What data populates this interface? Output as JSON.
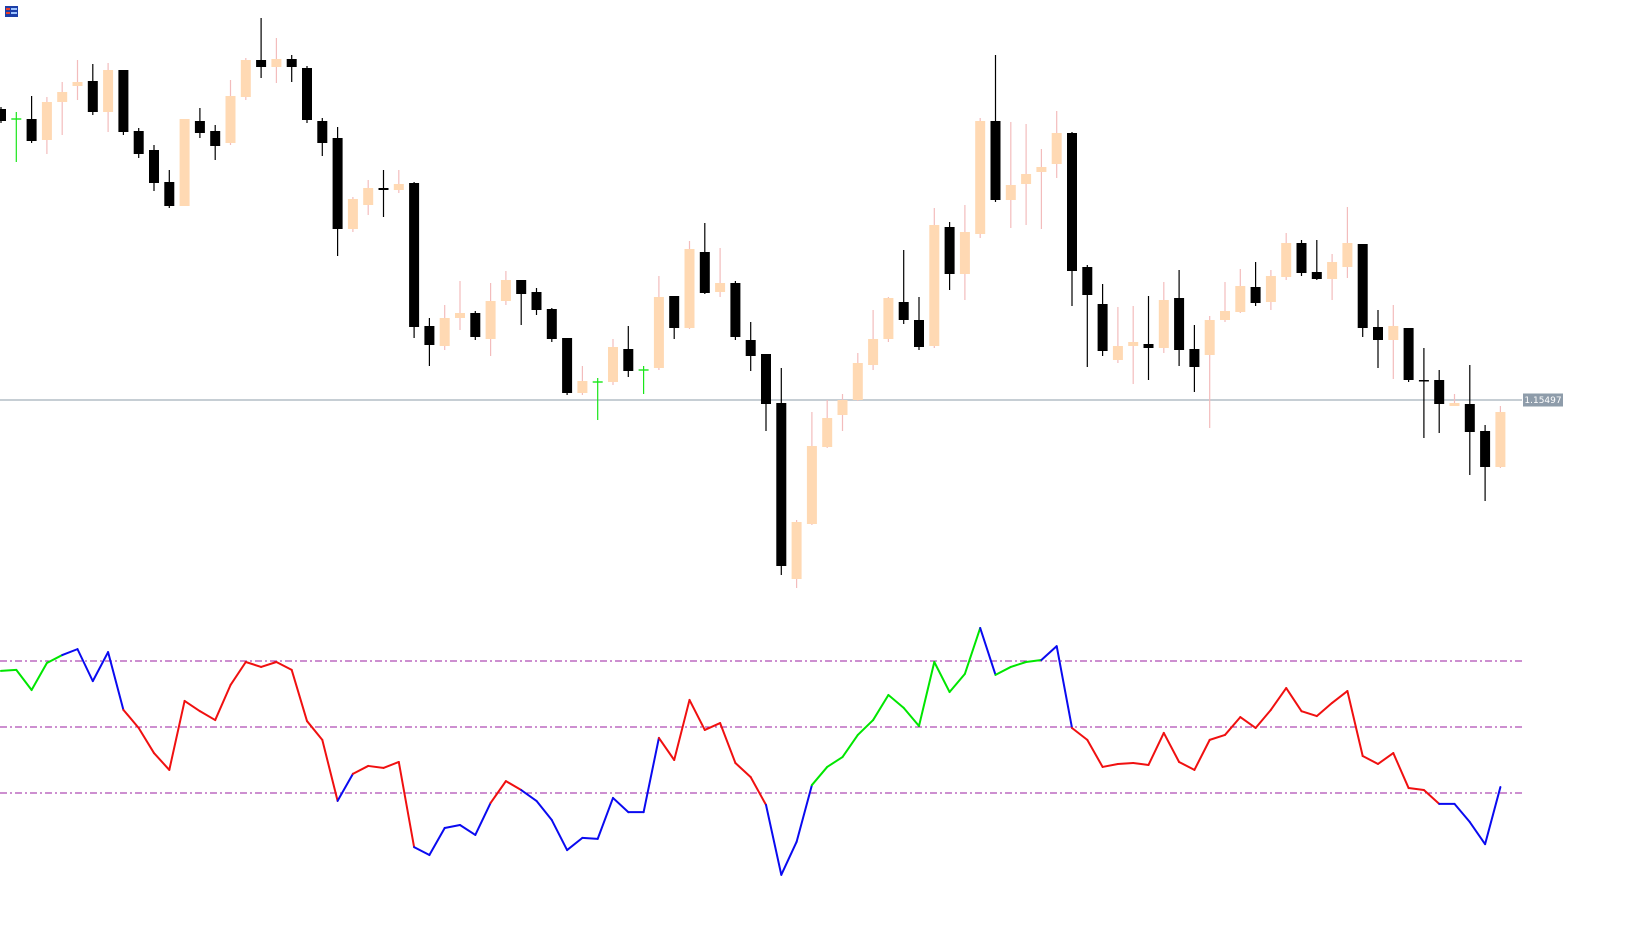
{
  "chart_data": [
    {
      "type": "candlestick",
      "ylim": [
        1.15297,
        1.15897
      ],
      "price_line": 1.15497,
      "up_color": "#ffd9b3",
      "up_wick_color": "#f3bcbc",
      "down_color": "#000000",
      "doji_color": "#19e619",
      "price_line_color": "#8e9caa",
      "open": [
        1.15788,
        1.15778,
        1.15778,
        1.15757,
        1.15795,
        1.15811,
        1.15816,
        1.15785,
        1.15827,
        1.15766,
        1.15747,
        1.15715,
        1.15691,
        1.15776,
        1.15766,
        1.15754,
        1.158,
        1.15837,
        1.1583,
        1.15838,
        1.15829,
        1.15776,
        1.15759,
        1.15668,
        1.15692,
        1.15709,
        1.15707,
        1.15714,
        1.15571,
        1.15551,
        1.15579,
        1.15584,
        1.15558,
        1.15596,
        1.15617,
        1.15605,
        1.15588,
        1.15559,
        1.15504,
        1.15515,
        1.15515,
        1.15548,
        1.15527,
        1.15529,
        1.15601,
        1.15569,
        1.15645,
        1.15605,
        1.15614,
        1.15557,
        1.15543,
        1.15494,
        1.15318,
        1.15373,
        1.1545,
        1.15482,
        1.15497,
        1.15532,
        1.15558,
        1.15595,
        1.15577,
        1.15551,
        1.1567,
        1.15623,
        1.15663,
        1.15776,
        1.15697,
        1.15713,
        1.15725,
        1.15733,
        1.15764,
        1.1563,
        1.15593,
        1.15537,
        1.15551,
        1.15553,
        1.15549,
        1.15599,
        1.15548,
        1.15542,
        1.15577,
        1.15585,
        1.1561,
        1.15595,
        1.1562,
        1.15654,
        1.15625,
        1.15618,
        1.1563,
        1.15653,
        1.1557,
        1.15557,
        1.15569,
        1.15517,
        1.15517,
        1.15491,
        1.15493,
        1.15466,
        1.1543
      ],
      "high": [
        1.1579,
        1.15785,
        1.15801,
        1.158,
        1.15815,
        1.15837,
        1.15833,
        1.15834,
        1.15827,
        1.15769,
        1.15752,
        1.15727,
        1.15778,
        1.15789,
        1.15772,
        1.15817,
        1.15839,
        1.15879,
        1.15859,
        1.15842,
        1.15831,
        1.15779,
        1.1577,
        1.157,
        1.15717,
        1.15727,
        1.15727,
        1.15715,
        1.15579,
        1.15592,
        1.15616,
        1.15586,
        1.15614,
        1.15626,
        1.15617,
        1.15609,
        1.15589,
        1.15559,
        1.15531,
        1.15519,
        1.15558,
        1.15571,
        1.15531,
        1.15621,
        1.15601,
        1.15656,
        1.15674,
        1.15649,
        1.15616,
        1.15575,
        1.15543,
        1.15529,
        1.15377,
        1.15485,
        1.15497,
        1.15503,
        1.15544,
        1.15587,
        1.156,
        1.15647,
        1.156,
        1.15689,
        1.15675,
        1.15692,
        1.15779,
        1.15842,
        1.15775,
        1.15773,
        1.15748,
        1.15786,
        1.15765,
        1.15632,
        1.15613,
        1.1559,
        1.15591,
        1.15601,
        1.15615,
        1.15627,
        1.15572,
        1.15581,
        1.15615,
        1.15628,
        1.15635,
        1.15627,
        1.15664,
        1.15657,
        1.15657,
        1.15643,
        1.1569,
        1.15653,
        1.15587,
        1.15592,
        1.15569,
        1.15549,
        1.15527,
        1.15503,
        1.15532,
        1.15472,
        1.15491
      ],
      "low": [
        1.15774,
        1.15735,
        1.15754,
        1.15743,
        1.15762,
        1.15797,
        1.15782,
        1.15765,
        1.15762,
        1.15739,
        1.15706,
        1.15689,
        1.15691,
        1.15759,
        1.15737,
        1.15752,
        1.15797,
        1.15819,
        1.15814,
        1.15815,
        1.15774,
        1.15741,
        1.15641,
        1.15665,
        1.15682,
        1.1568,
        1.15704,
        1.15559,
        1.15531,
        1.15547,
        1.15567,
        1.15557,
        1.15541,
        1.15592,
        1.15572,
        1.15582,
        1.15555,
        1.15502,
        1.15502,
        1.15477,
        1.15512,
        1.1552,
        1.15503,
        1.15527,
        1.15558,
        1.15568,
        1.15603,
        1.156,
        1.15557,
        1.15526,
        1.15466,
        1.15322,
        1.15309,
        1.15372,
        1.15449,
        1.15466,
        1.15496,
        1.15527,
        1.15555,
        1.15573,
        1.15547,
        1.15549,
        1.15607,
        1.15597,
        1.15659,
        1.15695,
        1.15669,
        1.15672,
        1.15668,
        1.15719,
        1.15591,
        1.1553,
        1.15541,
        1.15534,
        1.15513,
        1.15517,
        1.15544,
        1.15531,
        1.15505,
        1.15469,
        1.15575,
        1.15584,
        1.15591,
        1.15587,
        1.15617,
        1.15621,
        1.15617,
        1.15597,
        1.15619,
        1.1556,
        1.15529,
        1.15518,
        1.15515,
        1.15459,
        1.15464,
        1.15491,
        1.15422,
        1.15396,
        1.15429
      ],
      "close": [
        1.15776,
        1.15778,
        1.15756,
        1.15795,
        1.15805,
        1.15815,
        1.15785,
        1.15827,
        1.15765,
        1.15743,
        1.15714,
        1.15691,
        1.15778,
        1.15764,
        1.15751,
        1.15801,
        1.15837,
        1.1583,
        1.15838,
        1.1583,
        1.15777,
        1.15754,
        1.15668,
        1.15698,
        1.15709,
        1.15707,
        1.15713,
        1.1557,
        1.15552,
        1.15579,
        1.15584,
        1.1556,
        1.15596,
        1.15617,
        1.15603,
        1.15587,
        1.15558,
        1.15504,
        1.15516,
        1.15515,
        1.1555,
        1.15526,
        1.15527,
        1.156,
        1.15569,
        1.15648,
        1.15604,
        1.15614,
        1.1556,
        1.15541,
        1.15493,
        1.15331,
        1.15375,
        1.15451,
        1.15479,
        1.15497,
        1.15534,
        1.15558,
        1.15599,
        1.15577,
        1.1555,
        1.15672,
        1.15623,
        1.15665,
        1.15776,
        1.15697,
        1.15712,
        1.15723,
        1.1573,
        1.15764,
        1.15626,
        1.15602,
        1.15546,
        1.15551,
        1.15555,
        1.15549,
        1.15597,
        1.15547,
        1.1553,
        1.15577,
        1.15586,
        1.15611,
        1.15594,
        1.15621,
        1.15654,
        1.15624,
        1.15618,
        1.15635,
        1.15654,
        1.15569,
        1.15557,
        1.15571,
        1.15517,
        1.15516,
        1.15493,
        1.15494,
        1.15465,
        1.1543,
        1.15485
      ]
    },
    {
      "type": "line",
      "ylim": [
        0,
        90
      ],
      "levels": [
        70,
        50,
        30
      ],
      "level_color": "#9b1fa0",
      "values": [
        67.0,
        67.3,
        61.2,
        69.4,
        71.8,
        73.6,
        63.9,
        72.7,
        55.2,
        49.7,
        42.1,
        37.0,
        57.9,
        54.8,
        52.1,
        62.7,
        69.7,
        68.2,
        69.7,
        67.3,
        51.8,
        46.1,
        27.6,
        35.8,
        38.2,
        37.6,
        39.4,
        13.6,
        11.2,
        19.4,
        20.3,
        17.3,
        27.0,
        33.6,
        30.9,
        27.6,
        21.8,
        12.7,
        16.4,
        16.1,
        28.5,
        24.2,
        24.2,
        46.7,
        40.0,
        58.2,
        49.1,
        51.2,
        39.1,
        34.8,
        26.4,
        5.2,
        15.2,
        32.4,
        37.9,
        40.9,
        47.6,
        52.1,
        59.7,
        55.8,
        50.3,
        69.7,
        60.6,
        66.1,
        80.0,
        65.8,
        68.2,
        69.7,
        70.3,
        74.5,
        49.7,
        46.1,
        37.9,
        38.8,
        39.1,
        38.5,
        48.2,
        39.4,
        37.0,
        46.1,
        47.6,
        53.0,
        49.7,
        55.2,
        61.8,
        54.8,
        53.3,
        57.3,
        60.9,
        41.2,
        38.8,
        42.1,
        31.5,
        30.9,
        26.7,
        26.7,
        21.2,
        14.5,
        31.8
      ],
      "segment_colors": [
        "#00e600",
        "#00e600",
        "#00e600",
        "#00e600",
        "#0a0af0",
        "#0a0af0",
        "#0a0af0",
        "#0a0af0",
        "#f01010",
        "#f01010",
        "#f01010",
        "#f01010",
        "#f01010",
        "#f01010",
        "#f01010",
        "#f01010",
        "#f01010",
        "#f01010",
        "#f01010",
        "#f01010",
        "#f01010",
        "#f01010",
        "#0a0af0",
        "#f01010",
        "#f01010",
        "#f01010",
        "#f01010",
        "#0a0af0",
        "#0a0af0",
        "#0a0af0",
        "#0a0af0",
        "#0a0af0",
        "#f01010",
        "#f01010",
        "#0a0af0",
        "#0a0af0",
        "#0a0af0",
        "#0a0af0",
        "#0a0af0",
        "#0a0af0",
        "#0a0af0",
        "#0a0af0",
        "#0a0af0",
        "#f01010",
        "#f01010",
        "#f01010",
        "#f01010",
        "#f01010",
        "#f01010",
        "#f01010",
        "#0a0af0",
        "#0a0af0",
        "#0a0af0",
        "#00e600",
        "#00e600",
        "#00e600",
        "#00e600",
        "#00e600",
        "#00e600",
        "#00e600",
        "#00e600",
        "#00e600",
        "#00e600",
        "#00e600",
        "#0a0af0",
        "#00e600",
        "#00e600",
        "#00e600",
        "#0a0af0",
        "#0a0af0",
        "#f01010",
        "#f01010",
        "#f01010",
        "#f01010",
        "#f01010",
        "#f01010",
        "#f01010",
        "#f01010",
        "#f01010",
        "#f01010",
        "#f01010",
        "#f01010",
        "#f01010",
        "#f01010",
        "#f01010",
        "#f01010",
        "#f01010",
        "#f01010",
        "#f01010",
        "#f01010",
        "#f01010",
        "#f01010",
        "#f01010",
        "#f01010",
        "#0a0af0",
        "#0a0af0",
        "#0a0af0",
        "#0a0af0"
      ]
    }
  ]
}
